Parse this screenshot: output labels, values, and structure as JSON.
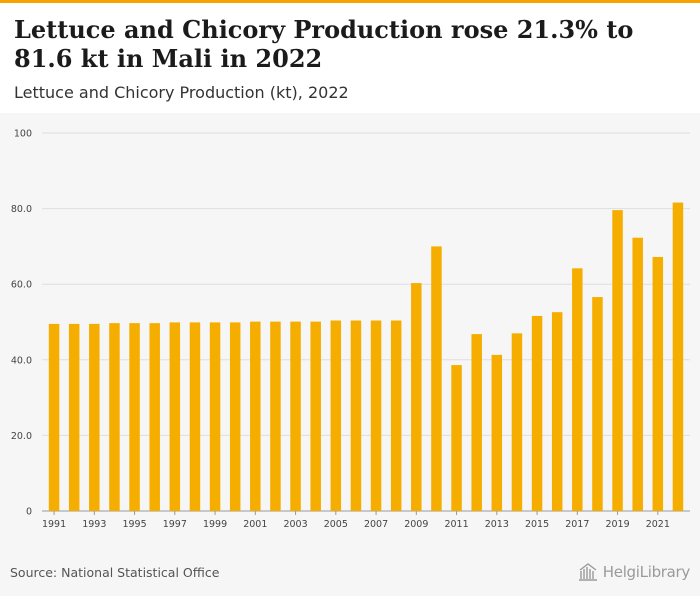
{
  "header": {
    "title": "Lettuce and Chicory Production rose 21.3% to 81.6 kt in Mali in 2022",
    "subtitle": "Lettuce and Chicory Production (kt), 2022"
  },
  "footer": {
    "source": "Source: National Statistical Office",
    "logo_text": "HelgiLibrary"
  },
  "colors": {
    "bar": "#f5ae00",
    "accent": "#f5a300",
    "grid": "#dedede",
    "background": "#f6f6f6"
  },
  "chart_data": {
    "type": "bar",
    "title": "Lettuce and Chicory Production (kt), 2022",
    "xlabel": "",
    "ylabel": "",
    "ylim": [
      0,
      100
    ],
    "grid": true,
    "yticks": [
      {
        "value": 0,
        "label": "0"
      },
      {
        "value": 20,
        "label": "20.0"
      },
      {
        "value": 40,
        "label": "40.0"
      },
      {
        "value": 60,
        "label": "60.0"
      },
      {
        "value": 80,
        "label": "80.0"
      },
      {
        "value": 100,
        "label": "100"
      }
    ],
    "categories": [
      1991,
      1992,
      1993,
      1994,
      1995,
      1996,
      1997,
      1998,
      1999,
      2000,
      2001,
      2002,
      2003,
      2004,
      2005,
      2006,
      2007,
      2008,
      2009,
      2010,
      2011,
      2012,
      2013,
      2014,
      2015,
      2016,
      2017,
      2018,
      2019,
      2020,
      2021,
      2022
    ],
    "xtick_labels": [
      "1991",
      "1993",
      "1995",
      "1997",
      "1999",
      "2001",
      "2003",
      "2005",
      "2007",
      "2009",
      "2011",
      "2013",
      "2015",
      "2017",
      "2019",
      "2021"
    ],
    "values": [
      49.5,
      49.5,
      49.5,
      49.7,
      49.7,
      49.7,
      49.9,
      49.9,
      49.9,
      49.9,
      50.1,
      50.1,
      50.1,
      50.1,
      50.4,
      50.4,
      50.4,
      50.4,
      60.3,
      70.0,
      38.6,
      46.8,
      41.3,
      47.0,
      51.6,
      52.6,
      64.2,
      56.6,
      79.6,
      72.3,
      67.2,
      81.6
    ]
  }
}
